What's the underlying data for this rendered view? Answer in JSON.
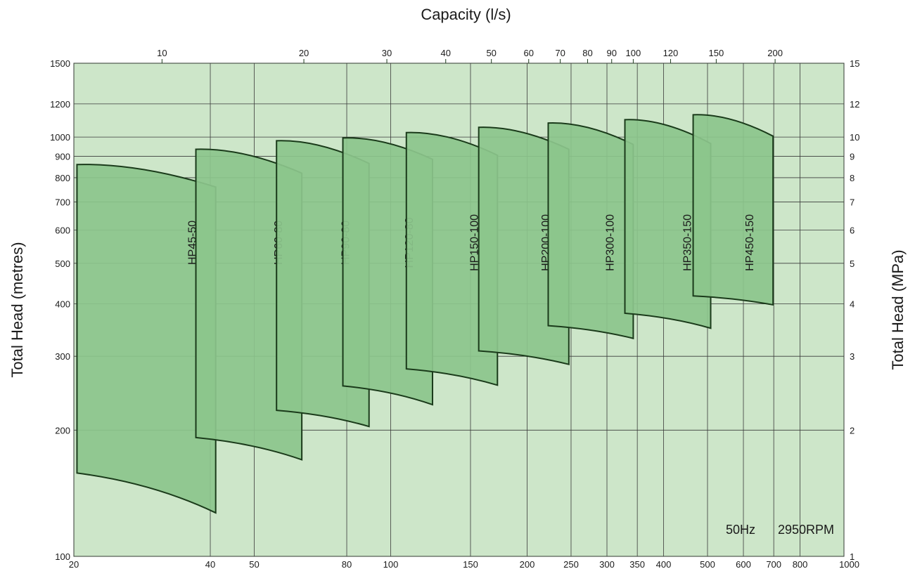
{
  "chart_data": {
    "type": "area",
    "title": "",
    "x_top_label": "Capacity (l/s)",
    "x_top_ticks": [
      10,
      20,
      30,
      40,
      50,
      60,
      70,
      80,
      90,
      100,
      120,
      150,
      200
    ],
    "x_bottom_ticks": [
      20,
      40,
      50,
      80,
      100,
      150,
      200,
      250,
      300,
      350,
      400,
      500,
      600,
      700,
      800,
      1000
    ],
    "x_range_ls": [
      6.5,
      280
    ],
    "ylabel_left": "Total Head (metres)",
    "y_left_ticks": [
      100,
      200,
      300,
      400,
      500,
      600,
      700,
      800,
      900,
      1000,
      1200,
      1500
    ],
    "y_left_scale": "log",
    "y_range_m": [
      100,
      1500
    ],
    "ylabel_right": "Total Head (MPa)",
    "y_right_ticks": [
      1,
      2,
      3,
      4,
      5,
      6,
      7,
      8,
      9,
      10,
      12,
      15
    ],
    "grid": true,
    "annotation": {
      "frequency": "50Hz",
      "speed": "2950RPM"
    },
    "colors": {
      "fill": "#8cc68c",
      "background": "#cde6c9",
      "stroke": "#1a3a1a",
      "grid": "#3a3a3a"
    },
    "series": [
      {
        "name": "HP45-50",
        "q_min": 6.6,
        "q_max": 13,
        "head_top": [
          860,
          760
        ],
        "head_bottom": [
          158,
          127
        ]
      },
      {
        "name": "HP60-80",
        "q_min": 11.8,
        "q_max": 19.8,
        "head_top": [
          935,
          820
        ],
        "head_bottom": [
          192,
          170
        ]
      },
      {
        "name": "HP90-80",
        "q_min": 17.5,
        "q_max": 27.5,
        "head_top": [
          980,
          865
        ],
        "head_bottom": [
          223,
          204
        ]
      },
      {
        "name": "HP120-80",
        "q_min": 24.2,
        "q_max": 37.5,
        "head_top": [
          995,
          885
        ],
        "head_bottom": [
          255,
          230
        ]
      },
      {
        "name": "HP150-100",
        "q_min": 33,
        "q_max": 51.5,
        "head_top": [
          1025,
          905
        ],
        "head_bottom": [
          280,
          256
        ]
      },
      {
        "name": "HP200-100",
        "q_min": 47,
        "q_max": 73,
        "head_top": [
          1055,
          935
        ],
        "head_bottom": [
          309,
          287
        ]
      },
      {
        "name": "HP300-100",
        "q_min": 66,
        "q_max": 100,
        "head_top": [
          1080,
          960
        ],
        "head_bottom": [
          355,
          331
        ]
      },
      {
        "name": "HP350-150",
        "q_min": 96,
        "q_max": 146,
        "head_top": [
          1100,
          965
        ],
        "head_bottom": [
          380,
          350
        ]
      },
      {
        "name": "HP450-150",
        "q_min": 134,
        "q_max": 198,
        "head_top": [
          1130,
          1005
        ],
        "head_bottom": [
          418,
          398
        ]
      }
    ]
  }
}
